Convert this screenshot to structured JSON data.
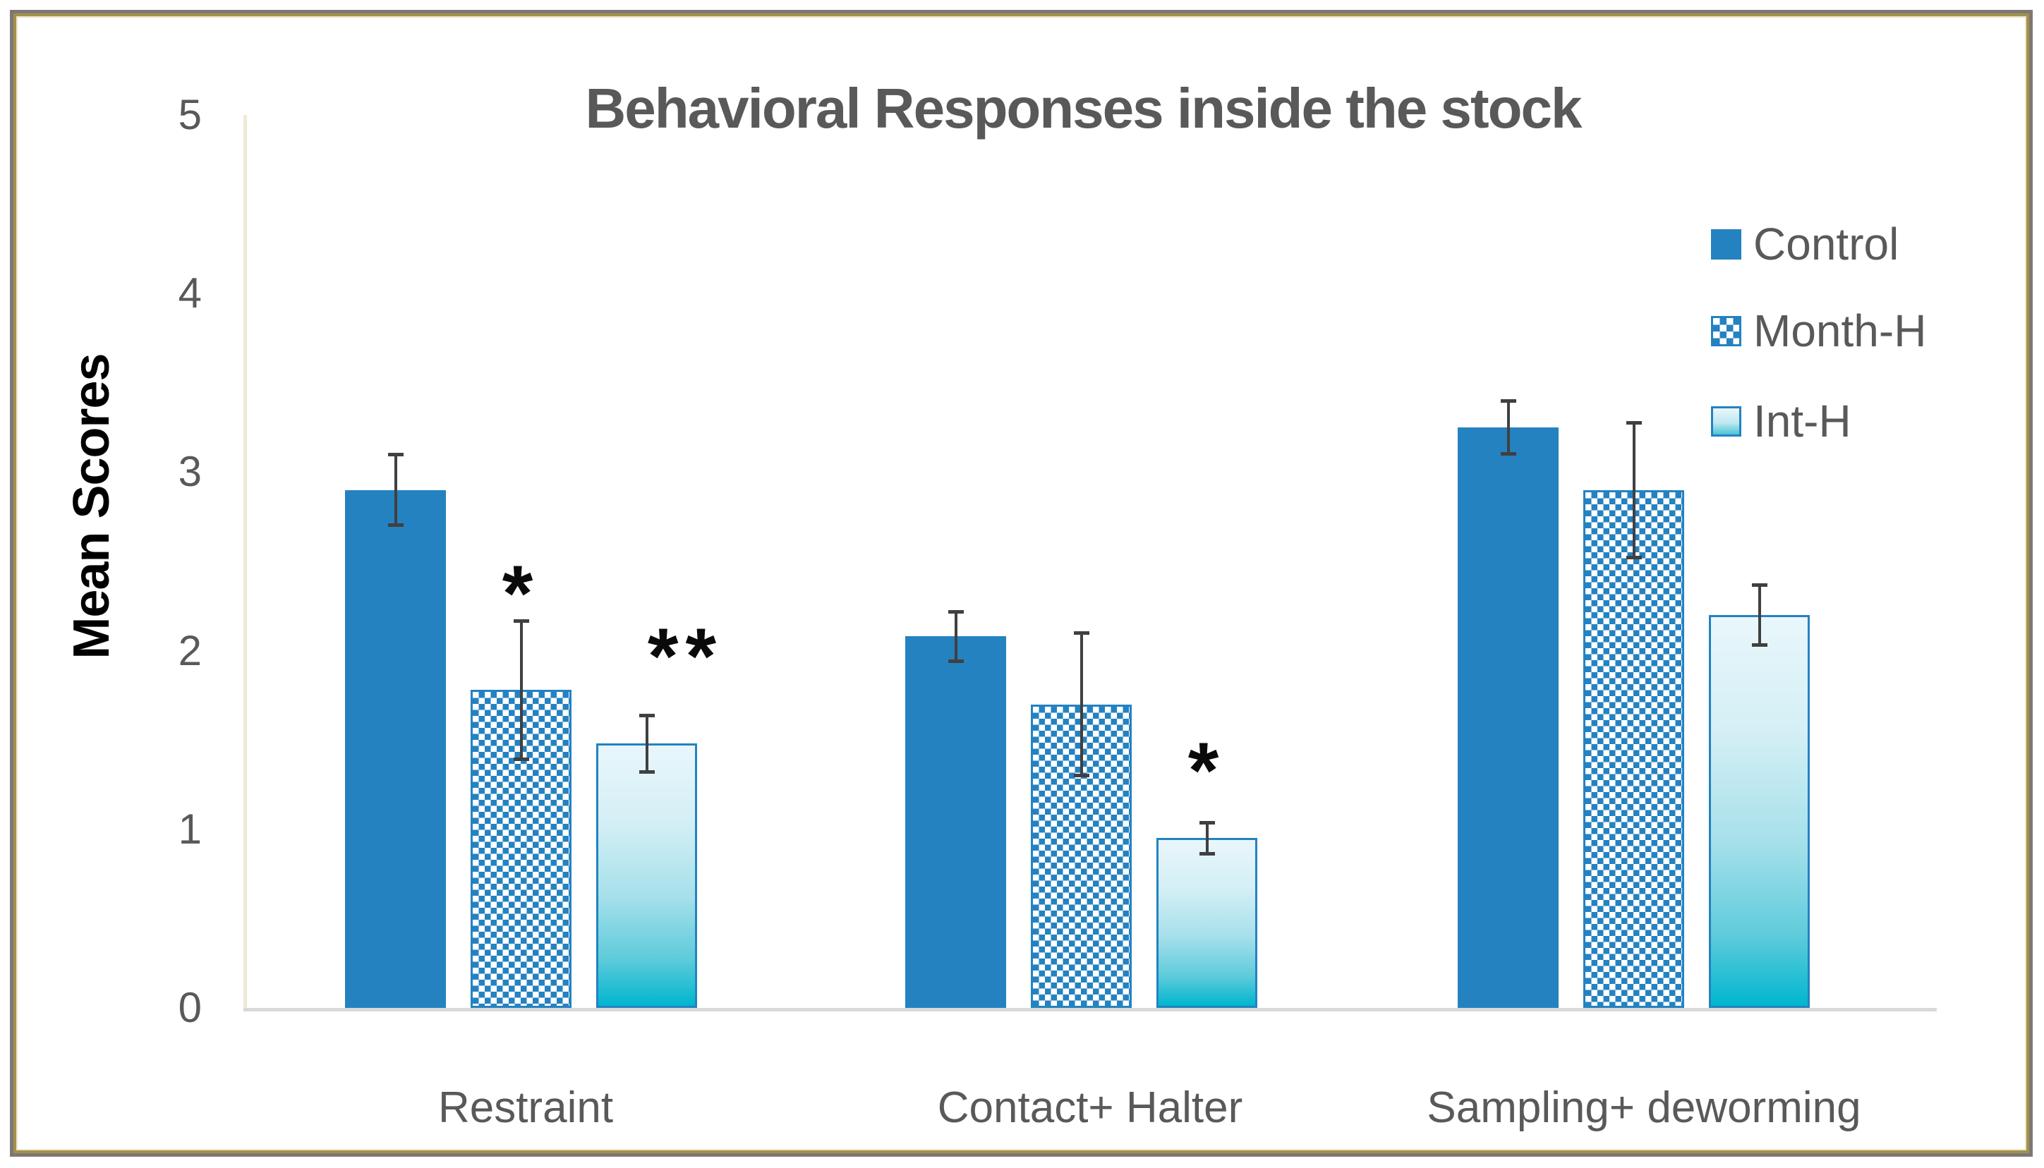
{
  "chart_data": {
    "type": "bar",
    "title": "Behavioral Responses inside the stock",
    "ylabel": "Mean Scores",
    "xlabel": "",
    "ylim": [
      0,
      5
    ],
    "yticks": [
      0,
      1,
      2,
      3,
      4,
      5
    ],
    "grid": false,
    "legend_position": "right",
    "categories": [
      "Restraint",
      "Contact+ Halter",
      "Sampling+ deworming"
    ],
    "series": [
      {
        "name": "Control",
        "pattern": "solid",
        "values": [
          2.9,
          2.08,
          3.25
        ],
        "errors": [
          0.2,
          0.14,
          0.15
        ]
      },
      {
        "name": "Month-H",
        "pattern": "checker",
        "values": [
          1.78,
          1.7,
          2.9
        ],
        "errors": [
          0.39,
          0.4,
          0.38
        ]
      },
      {
        "name": "Int-H",
        "pattern": "gradient",
        "values": [
          1.48,
          0.95,
          2.2
        ],
        "errors": [
          0.16,
          0.09,
          0.17
        ]
      }
    ],
    "annotations": [
      {
        "category": "Restraint",
        "series": "Month-H",
        "text": "*",
        "y": 2.4,
        "x_offset": 0
      },
      {
        "category": "Restraint",
        "series": "Int-H",
        "text": "**",
        "y": 2.05,
        "x_offset": 55
      },
      {
        "category": "Contact+ Halter",
        "series": "Int-H",
        "text": "*",
        "y": 1.41,
        "x_offset": 0
      }
    ],
    "colors": {
      "bar_blue": "#2482c1",
      "gradient_top": "#e9f7fb",
      "gradient_bottom": "#00b6ce",
      "error_bar": "#404040",
      "text_gray": "#595959",
      "y_axis_line": "#efe9d6",
      "x_axis_line": "#d9d9d9",
      "frame_gray": "#7d7776",
      "frame_olive": "#a2914a",
      "frame_cream": "#ede5c6",
      "annotation_black": "#0a0a0a"
    }
  }
}
